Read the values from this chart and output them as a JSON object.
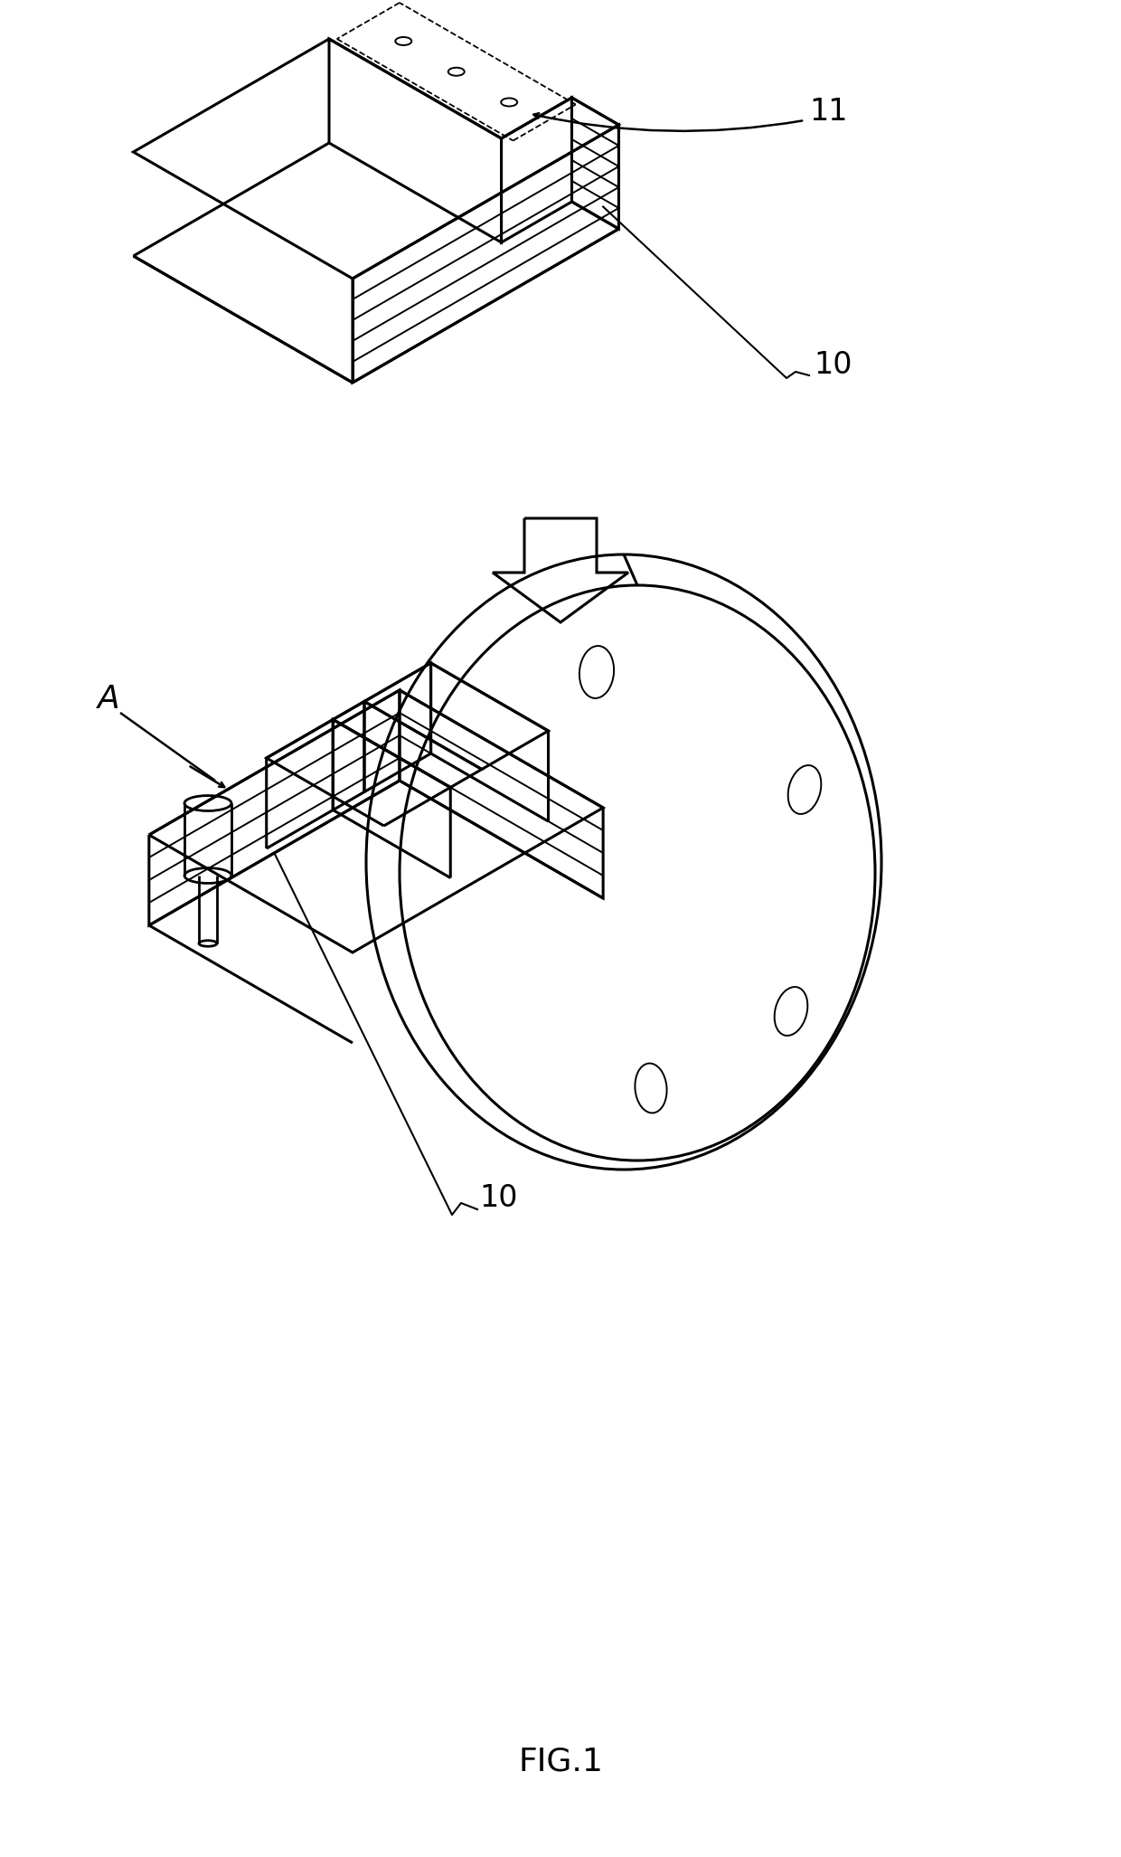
{
  "title": "FIG.1",
  "label_10_top": "10",
  "label_11": "11",
  "label_10_bottom": "10",
  "label_A": "A",
  "bg_color": "#ffffff",
  "line_color": "#000000",
  "lw": 2.0,
  "lw_thick": 2.2,
  "lw_thin": 1.4,
  "lw_dashed": 1.3
}
